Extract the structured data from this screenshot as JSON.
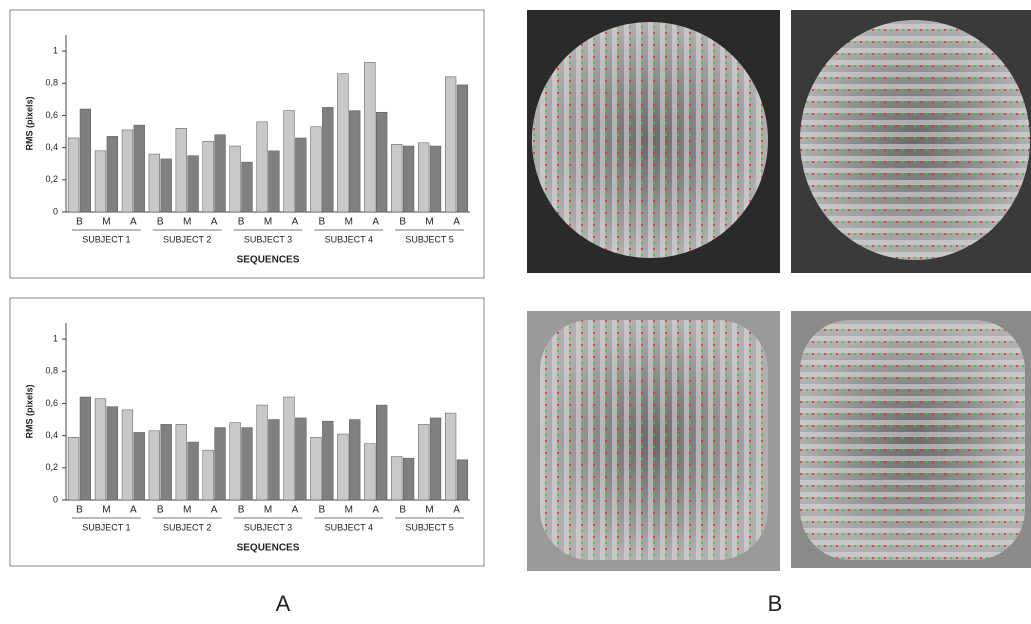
{
  "chart_data": [
    {
      "type": "bar",
      "y_label": "RMS (pixels)",
      "x_label": "SEQUENCES",
      "categories": [
        "B",
        "M",
        "A",
        "B",
        "M",
        "A",
        "B",
        "M",
        "A",
        "B",
        "M",
        "A",
        "B",
        "M",
        "A"
      ],
      "groups": [
        "SUBJECT 1",
        "SUBJECT 2",
        "SUBJECT 3",
        "SUBJECT 4",
        "SUBJECT 5"
      ],
      "series": [
        {
          "color": "#c8c8c8",
          "values": [
            0.46,
            0.38,
            0.51,
            0.36,
            0.52,
            0.44,
            0.41,
            0.56,
            0.63,
            0.53,
            0.86,
            0.93,
            0.42,
            0.43,
            0.84
          ]
        },
        {
          "color": "#808080",
          "values": [
            0.64,
            0.47,
            0.54,
            0.33,
            0.35,
            0.48,
            0.31,
            0.38,
            0.46,
            0.65,
            0.63,
            0.62,
            0.41,
            0.41,
            0.79
          ]
        }
      ],
      "ylim": [
        0,
        1.1
      ],
      "yticks": [
        0,
        {
          "value": 0.2,
          "label": "0,2"
        },
        {
          "value": 0.4,
          "label": "0,4"
        },
        {
          "value": 0.6,
          "label": "0,6"
        },
        {
          "value": 0.8,
          "label": "0,8"
        },
        1
      ]
    },
    {
      "type": "bar",
      "y_label": "RMS (pixels)",
      "x_label": "SEQUENCES",
      "categories": [
        "B",
        "M",
        "A",
        "B",
        "M",
        "A",
        "B",
        "M",
        "A",
        "B",
        "M",
        "A",
        "B",
        "M",
        "A"
      ],
      "groups": [
        "SUBJECT 1",
        "SUBJECT 2",
        "SUBJECT 3",
        "SUBJECT 4",
        "SUBJECT 5"
      ],
      "series": [
        {
          "color": "#c8c8c8",
          "values": [
            0.39,
            0.63,
            0.56,
            0.43,
            0.47,
            0.31,
            0.48,
            0.59,
            0.64,
            0.39,
            0.41,
            0.35,
            0.27,
            0.47,
            0.54
          ]
        },
        {
          "color": "#808080",
          "values": [
            0.64,
            0.58,
            0.42,
            0.47,
            0.36,
            0.45,
            0.45,
            0.5,
            0.51,
            0.49,
            0.5,
            0.59,
            0.26,
            0.51,
            0.25
          ]
        }
      ],
      "ylim": [
        0,
        1.1
      ],
      "yticks": [
        0,
        {
          "value": 0.2,
          "label": "0,2"
        },
        {
          "value": 0.4,
          "label": "0,4"
        },
        {
          "value": 0.6,
          "label": "0,6"
        },
        {
          "value": 0.8,
          "label": "0,8"
        },
        1
      ]
    }
  ],
  "panel_labels": [
    "A",
    "B"
  ]
}
